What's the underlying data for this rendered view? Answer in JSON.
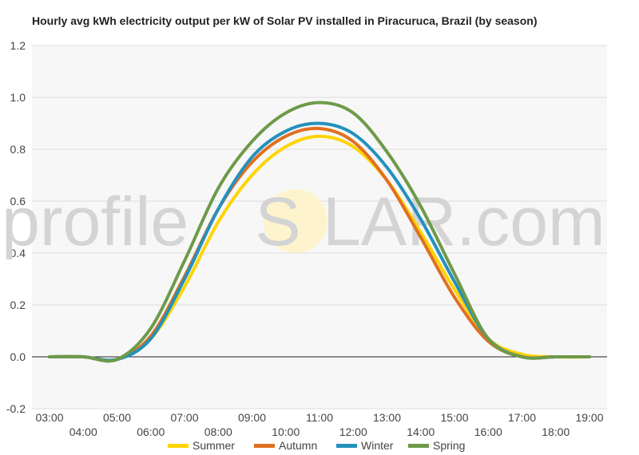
{
  "chart_data": {
    "type": "line",
    "title": "Hourly avg kWh electricity output per kW of Solar PV installed in Piracuruca, Brazil (by season)",
    "xlabel": "",
    "ylabel": "",
    "ylim": [
      -0.2,
      1.2
    ],
    "yticks": [
      "1.2",
      "1.0",
      "0.8",
      "0.6",
      "0.4",
      "0.2",
      "0.0",
      "-0.2"
    ],
    "x": [
      "03:00",
      "04:00",
      "05:00",
      "06:00",
      "07:00",
      "08:00",
      "09:00",
      "10:00",
      "11:00",
      "12:00",
      "13:00",
      "14:00",
      "15:00",
      "16:00",
      "17:00",
      "18:00",
      "19:00"
    ],
    "grid": true,
    "legend_position": "bottom",
    "series": [
      {
        "name": "Summer",
        "color": "#ffd400",
        "values": [
          0.0,
          0.0,
          -0.01,
          0.07,
          0.27,
          0.52,
          0.7,
          0.81,
          0.85,
          0.81,
          0.68,
          0.48,
          0.26,
          0.07,
          0.01,
          0.0,
          0.0
        ]
      },
      {
        "name": "Autumn",
        "color": "#e07020",
        "values": [
          0.0,
          0.0,
          -0.01,
          0.08,
          0.31,
          0.57,
          0.75,
          0.85,
          0.88,
          0.83,
          0.68,
          0.46,
          0.23,
          0.06,
          0.0,
          0.0,
          0.0
        ]
      },
      {
        "name": "Winter",
        "color": "#2391bd",
        "values": [
          0.0,
          0.0,
          -0.01,
          0.07,
          0.3,
          0.57,
          0.77,
          0.87,
          0.9,
          0.86,
          0.73,
          0.53,
          0.29,
          0.07,
          0.0,
          0.0,
          0.0
        ]
      },
      {
        "name": "Spring",
        "color": "#6e9a4a",
        "values": [
          0.0,
          0.0,
          -0.01,
          0.11,
          0.37,
          0.65,
          0.83,
          0.94,
          0.98,
          0.94,
          0.79,
          0.58,
          0.32,
          0.07,
          0.0,
          0.0,
          0.0
        ]
      }
    ]
  },
  "watermark": {
    "left": "profile",
    "sun_letter": "S",
    "right": "LAR.com"
  }
}
